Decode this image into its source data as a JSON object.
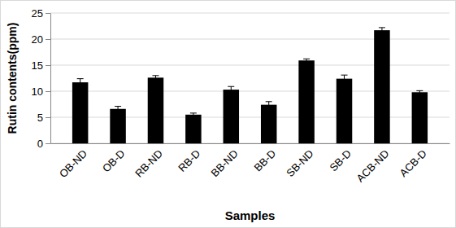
{
  "chart_data": {
    "type": "bar",
    "categories": [
      "OB-ND",
      "OB-D",
      "RB-ND",
      "RB-D",
      "BB-ND",
      "BB-D",
      "SB-ND",
      "SB-D",
      "ACB-ND",
      "ACB-D"
    ],
    "values": [
      11.7,
      6.6,
      12.6,
      5.5,
      10.3,
      7.4,
      15.9,
      12.4,
      21.7,
      9.8
    ],
    "errors": [
      0.7,
      0.5,
      0.4,
      0.3,
      0.6,
      0.6,
      0.3,
      0.7,
      0.5,
      0.3
    ],
    "color": "#000000",
    "x_label": "Samples",
    "y_label": "Rutin contents(ppm)",
    "ylim": [
      0,
      25
    ],
    "yticks": [
      0,
      5,
      10,
      15,
      20,
      25
    ],
    "grid": true
  }
}
